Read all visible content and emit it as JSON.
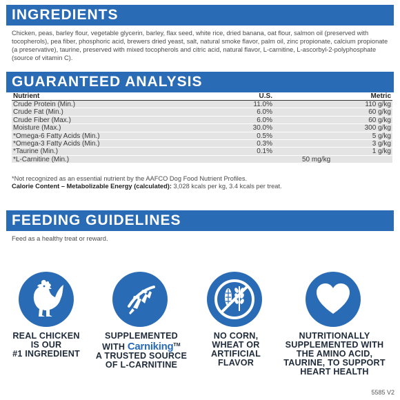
{
  "ingredients": {
    "title": "INGREDIENTS",
    "text": "Chicken, peas, barley flour, vegetable glycerin, barley, flax seed, white rice, dried banana, oat flour, salmon oil (preserved with tocopherols), pea fiber, phosphoric acid, brewers dried yeast, salt, natural smoke flavor, palm oil, zinc propionate, calcium propionate (a preservative), taurine, preserved with mixed tocopherols and citric acid, natural flavor, L-carnitine, L-ascorbyl-2-polyphosphate (source of vitamin C)."
  },
  "analysis": {
    "title": "GUARANTEED ANALYSIS",
    "headers": {
      "nutrient": "Nutrient",
      "us": "U.S.",
      "metric": "Metric"
    },
    "rows": [
      {
        "nutrient": "Crude Protein (Min.)",
        "us": "11.0%",
        "metric": "110 g/kg"
      },
      {
        "nutrient": "Crude Fat (Min.)",
        "us": "6.0%",
        "metric": "60 g/kg"
      },
      {
        "nutrient": "Crude Fiber (Max.)",
        "us": "6.0%",
        "metric": "60 g/kg"
      },
      {
        "nutrient": "Moisture (Max.)",
        "us": "30.0%",
        "metric": "300 g/kg"
      },
      {
        "nutrient": "*Omega-6 Fatty Acids (Min.)",
        "us": "0.5%",
        "metric": "5 g/kg"
      },
      {
        "nutrient": "*Omega-3 Fatty Acids (Min.)",
        "us": "0.3%",
        "metric": "3 g/kg"
      },
      {
        "nutrient": "*Taurine (Min.)",
        "us": "0.1%",
        "metric": "1 g/kg"
      },
      {
        "nutrient": "*L-Carnitine (Min.)",
        "us": "",
        "metric": "50 mg/kg"
      }
    ],
    "footnote": "*Not recognized as an essential nutrient by the AAFCO Dog Food Nutrient Profiles.",
    "calorie_label": "Calorie Content – Metabolizable Energy (calculated):",
    "calorie_value": " 3,028 kcals per kg, 3.4 kcals per treat."
  },
  "feeding": {
    "title": "FEEDING GUIDELINES",
    "text": "Feed as a healthy treat or reward."
  },
  "badges": [
    {
      "icon": "chicken-icon",
      "line1": "REAL CHICKEN",
      "line2": "IS OUR",
      "line3": "#1 INGREDIENT"
    },
    {
      "icon": "runner-icon",
      "line1": "SUPPLEMENTED",
      "line2_pre": "WITH ",
      "brand": "Carniking",
      "tm": "TM",
      "line3": "A TRUSTED SOURCE",
      "line4": "OF L-CARNITINE"
    },
    {
      "icon": "no-grain-icon",
      "line1": "NO CORN,",
      "line2": "WHEAT OR",
      "line3": "ARTIFICIAL",
      "line4": "FLAVOR"
    },
    {
      "icon": "heart-icon",
      "line1": "NUTRITIONALLY",
      "line2": "SUPPLEMENTED WITH",
      "line3": "THE AMINO ACID,",
      "line4": "TAURINE, TO SUPPORT",
      "line5": "HEART HEALTH"
    }
  ],
  "version": "5585 V2",
  "colors": {
    "brand_blue": "#2a6bb5",
    "row_shade": "#e4e4e4"
  }
}
